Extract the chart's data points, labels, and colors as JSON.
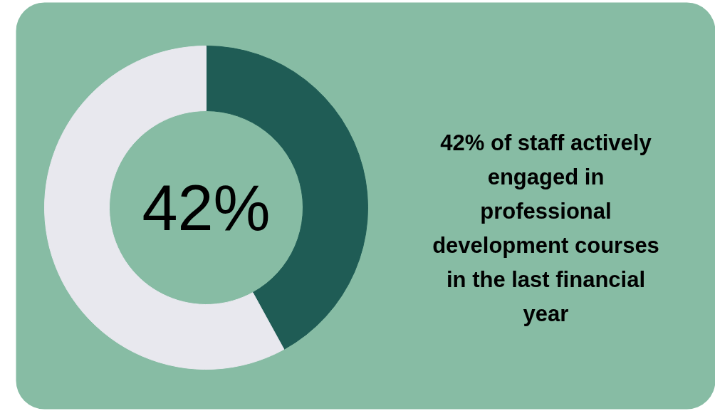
{
  "chart_data": {
    "type": "donut",
    "title": "42% of staff actively engaged in professional development courses in the last financial year",
    "categories": [
      null,
      null
    ],
    "values": [
      42,
      58
    ],
    "colors": [
      "#1f5c55",
      "#e8e8ee"
    ],
    "annotations": [
      "42%"
    ]
  }
}
